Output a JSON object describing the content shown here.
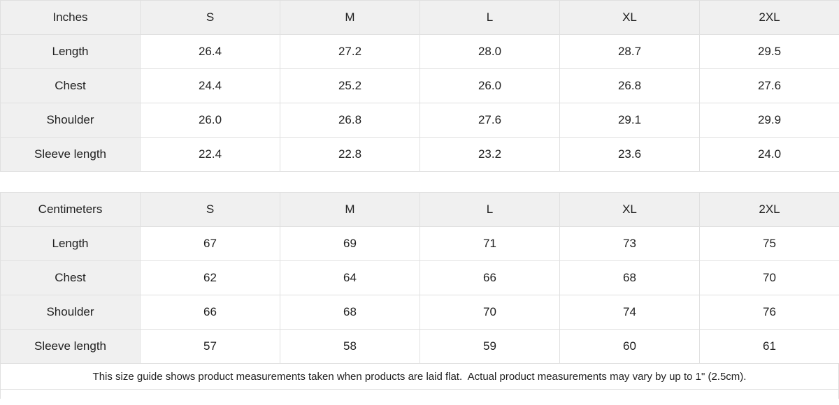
{
  "colors": {
    "header_background": "#f0f0f0",
    "border": "#e0e0e0",
    "text": "#212121",
    "cell_background": "#ffffff"
  },
  "tables": [
    {
      "unit_label": "Inches",
      "sizes": [
        "S",
        "M",
        "L",
        "XL",
        "2XL"
      ],
      "rows": [
        {
          "label": "Length",
          "values": [
            "26.4",
            "27.2",
            "28.0",
            "28.7",
            "29.5"
          ]
        },
        {
          "label": "Chest",
          "values": [
            "24.4",
            "25.2",
            "26.0",
            "26.8",
            "27.6"
          ]
        },
        {
          "label": "Shoulder",
          "values": [
            "26.0",
            "26.8",
            "27.6",
            "29.1",
            "29.9"
          ]
        },
        {
          "label": "Sleeve length",
          "values": [
            "22.4",
            "22.8",
            "23.2",
            "23.6",
            "24.0"
          ]
        }
      ]
    },
    {
      "unit_label": "Centimeters",
      "sizes": [
        "S",
        "M",
        "L",
        "XL",
        "2XL"
      ],
      "rows": [
        {
          "label": "Length",
          "values": [
            "67",
            "69",
            "71",
            "73",
            "75"
          ]
        },
        {
          "label": "Chest",
          "values": [
            "62",
            "64",
            "66",
            "68",
            "70"
          ]
        },
        {
          "label": "Shoulder",
          "values": [
            "66",
            "68",
            "70",
            "74",
            "76"
          ]
        },
        {
          "label": "Sleeve length",
          "values": [
            "57",
            "58",
            "59",
            "60",
            "61"
          ]
        }
      ]
    }
  ],
  "footer": {
    "note": "This size guide shows product measurements taken when products are laid flat.  Actual product measurements may vary by up to 1\" (2.5cm)."
  }
}
